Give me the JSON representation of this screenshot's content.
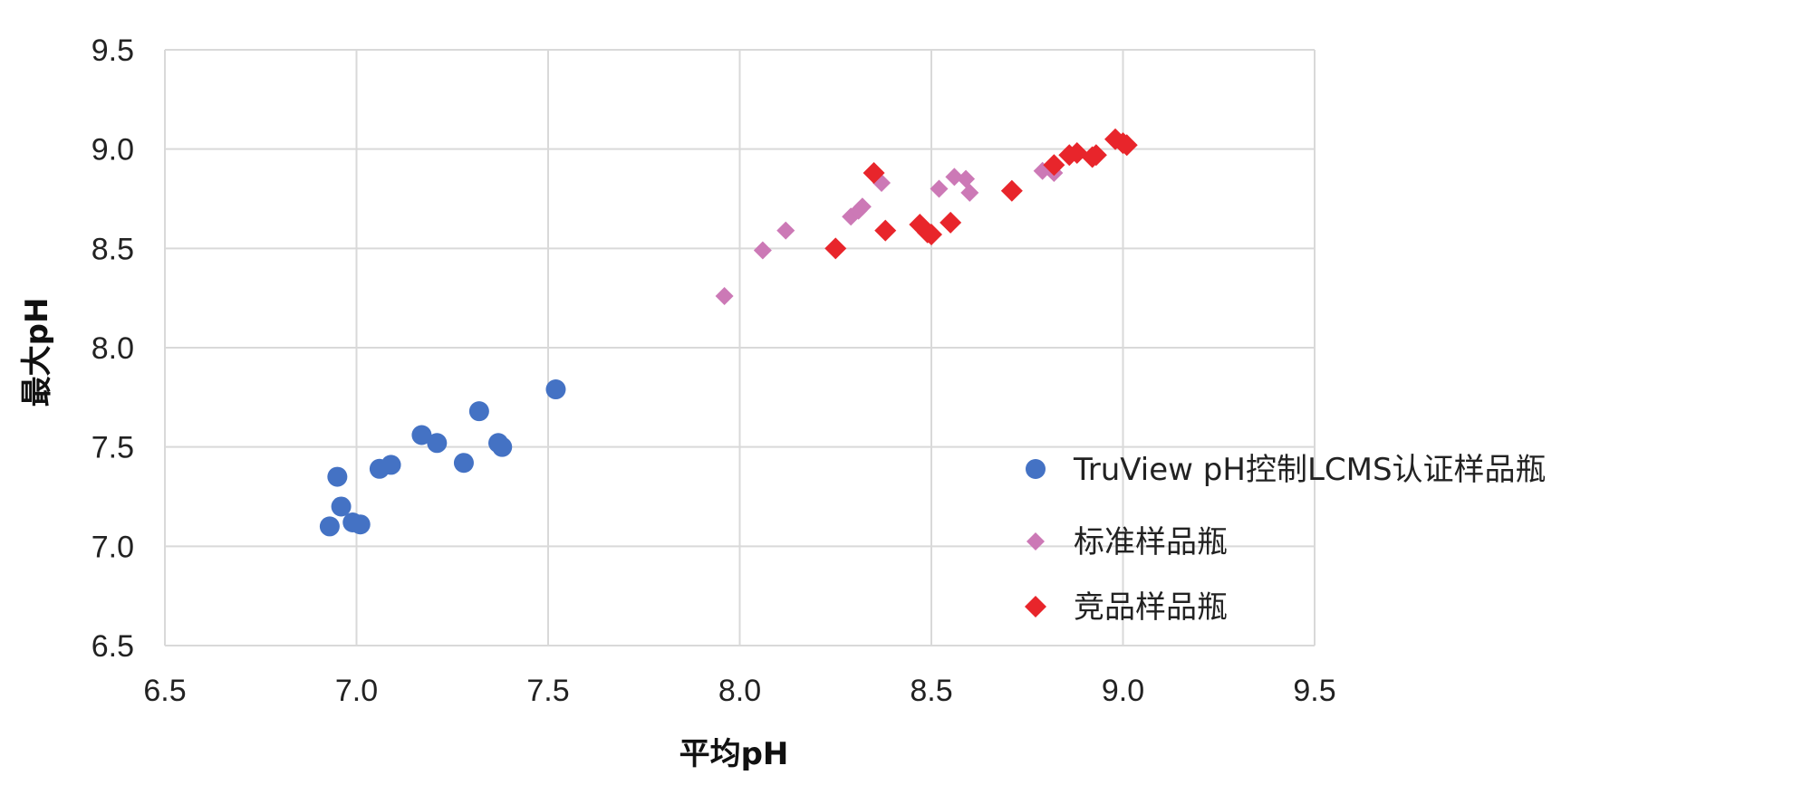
{
  "chart_data": {
    "type": "scatter",
    "xlabel": "平均pH",
    "ylabel": "最大pH",
    "xlim": [
      6.5,
      9.5
    ],
    "ylim": [
      6.5,
      9.5
    ],
    "xticks": [
      "6.5",
      "7.0",
      "7.5",
      "8.0",
      "8.5",
      "9.0",
      "9.5"
    ],
    "yticks": [
      "6.5",
      "7.0",
      "7.5",
      "8.0",
      "8.5",
      "9.0",
      "9.5"
    ],
    "grid": true,
    "legend_position": "right-bottom",
    "series": [
      {
        "name": "TruView pH控制LCMS认证样品瓶",
        "marker": "circle",
        "color": "#4472C4",
        "points": [
          [
            6.93,
            7.1
          ],
          [
            6.95,
            7.35
          ],
          [
            6.96,
            7.2
          ],
          [
            6.99,
            7.12
          ],
          [
            7.01,
            7.11
          ],
          [
            7.06,
            7.39
          ],
          [
            7.09,
            7.41
          ],
          [
            7.17,
            7.56
          ],
          [
            7.21,
            7.52
          ],
          [
            7.28,
            7.42
          ],
          [
            7.32,
            7.68
          ],
          [
            7.37,
            7.52
          ],
          [
            7.38,
            7.5
          ],
          [
            7.52,
            7.79
          ]
        ]
      },
      {
        "name": "标准样品瓶",
        "marker": "diamond",
        "color": "#CC79B6",
        "points": [
          [
            7.96,
            8.26
          ],
          [
            8.06,
            8.49
          ],
          [
            8.12,
            8.59
          ],
          [
            8.29,
            8.66
          ],
          [
            8.31,
            8.69
          ],
          [
            8.32,
            8.71
          ],
          [
            8.37,
            8.83
          ],
          [
            8.52,
            8.8
          ],
          [
            8.56,
            8.86
          ],
          [
            8.59,
            8.85
          ],
          [
            8.6,
            8.78
          ],
          [
            8.79,
            8.89
          ],
          [
            8.82,
            8.88
          ]
        ]
      },
      {
        "name": "竞品样品瓶",
        "marker": "diamond",
        "color": "#E8252B",
        "points": [
          [
            8.25,
            8.5
          ],
          [
            8.35,
            8.88
          ],
          [
            8.38,
            8.59
          ],
          [
            8.47,
            8.62
          ],
          [
            8.49,
            8.58
          ],
          [
            8.5,
            8.57
          ],
          [
            8.55,
            8.63
          ],
          [
            8.71,
            8.79
          ],
          [
            8.82,
            8.92
          ],
          [
            8.86,
            8.97
          ],
          [
            8.88,
            8.98
          ],
          [
            8.92,
            8.96
          ],
          [
            8.93,
            8.97
          ],
          [
            8.98,
            9.05
          ],
          [
            9.0,
            9.03
          ],
          [
            9.01,
            9.02
          ]
        ]
      }
    ]
  }
}
